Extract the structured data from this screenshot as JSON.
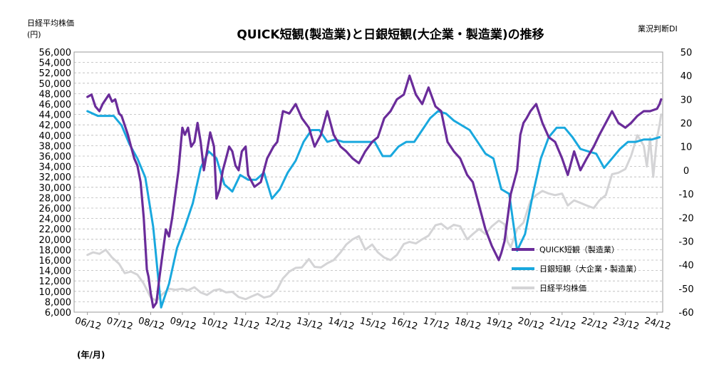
{
  "chart_data": {
    "type": "line",
    "title": "QUICK短観(製造業)と日銀短観(大企業・製造業)の推移",
    "left_axis_label": [
      "日経平均株価",
      "(円)"
    ],
    "right_axis_label": "業況判断DI",
    "x_unit_label": "(年/月)",
    "x_labels": [
      "06/12",
      "07/12",
      "08/12",
      "09/12",
      "10/12",
      "11/12",
      "12/12",
      "13/12",
      "14/12",
      "15/12",
      "16/12",
      "17/12",
      "18/12",
      "19/12",
      "20/12",
      "21/12",
      "22/12",
      "23/12",
      "24/12"
    ],
    "left_ylim": [
      6000,
      56000
    ],
    "left_ticks": [
      "6,000",
      "8,000",
      "10,000",
      "12,000",
      "14,000",
      "16,000",
      "18,000",
      "20,000",
      "22,000",
      "24,000",
      "26,000",
      "28,000",
      "30,000",
      "32,000",
      "34,000",
      "36,000",
      "38,000",
      "40,000",
      "42,000",
      "44,000",
      "46,000",
      "48,000",
      "50,000",
      "52,000",
      "54,000",
      "56,000"
    ],
    "right_ylim": [
      -60,
      50
    ],
    "right_ticks": [
      "-60",
      "-50",
      "-40",
      "-30",
      "-20",
      "-10",
      "0",
      "10",
      "20",
      "30",
      "40",
      "50"
    ],
    "grid": "horizontal dashed",
    "legend_position": "inside lower-right",
    "series": [
      {
        "name": "QUICK短観（製造業）",
        "axis": "right",
        "color": "#6a2c9a",
        "x": [
          2006.92,
          2007.05,
          2007.17,
          2007.3,
          2007.4,
          2007.5,
          2007.6,
          2007.7,
          2007.8,
          2007.92,
          2008.0,
          2008.1,
          2008.2,
          2008.3,
          2008.4,
          2008.5,
          2008.6,
          2008.7,
          2008.8,
          2008.85,
          2008.92,
          2009.0,
          2009.1,
          2009.2,
          2009.3,
          2009.4,
          2009.5,
          2009.6,
          2009.7,
          2009.8,
          2009.92,
          2010.0,
          2010.1,
          2010.2,
          2010.3,
          2010.4,
          2010.5,
          2010.6,
          2010.7,
          2010.8,
          2010.92,
          2011.0,
          2011.1,
          2011.2,
          2011.3,
          2011.4,
          2011.5,
          2011.6,
          2011.7,
          2011.8,
          2011.92,
          2012.0,
          2012.2,
          2012.4,
          2012.6,
          2012.8,
          2012.92,
          2013.1,
          2013.3,
          2013.5,
          2013.7,
          2013.92,
          2014.1,
          2014.3,
          2014.5,
          2014.7,
          2014.92,
          2015.1,
          2015.3,
          2015.5,
          2015.7,
          2015.92,
          2016.1,
          2016.3,
          2016.5,
          2016.7,
          2016.92,
          2017.1,
          2017.3,
          2017.5,
          2017.7,
          2017.92,
          2018.1,
          2018.3,
          2018.5,
          2018.7,
          2018.92,
          2019.1,
          2019.3,
          2019.5,
          2019.7,
          2019.92,
          2020.0,
          2020.1,
          2020.2,
          2020.3,
          2020.4,
          2020.5,
          2020.6,
          2020.7,
          2020.8,
          2020.92,
          2021.1,
          2021.3,
          2021.5,
          2021.7,
          2021.92,
          2022.1,
          2022.3,
          2022.5,
          2022.7,
          2022.92,
          2023.1,
          2023.3,
          2023.5,
          2023.7,
          2023.92,
          2024.1,
          2024.3,
          2024.5,
          2024.7,
          2024.92,
          2025.0,
          2025.05
        ],
        "y": [
          31,
          32,
          27,
          25,
          28,
          30,
          32,
          29,
          30,
          24,
          23,
          19,
          15,
          10,
          5,
          2,
          -5,
          -20,
          -42,
          -45,
          -52,
          -58,
          -56,
          -45,
          -35,
          -25,
          -28,
          -20,
          -10,
          0,
          18,
          15,
          18,
          10,
          12,
          20,
          12,
          0,
          8,
          16,
          10,
          -12,
          -8,
          0,
          5,
          10,
          8,
          2,
          0,
          8,
          10,
          -2,
          -7,
          -5,
          5,
          10,
          12,
          25,
          24,
          28,
          22,
          18,
          10,
          15,
          25,
          15,
          10,
          8,
          5,
          3,
          8,
          12,
          14,
          22,
          25,
          30,
          32,
          40,
          32,
          28,
          35,
          27,
          25,
          12,
          8,
          5,
          -2,
          -5,
          -15,
          -25,
          -32,
          -38,
          -35,
          -30,
          -20,
          -10,
          -5,
          0,
          15,
          20,
          22,
          25,
          28,
          20,
          14,
          12,
          5,
          -2,
          8,
          0,
          5,
          10,
          15,
          20,
          25,
          20,
          18,
          20,
          23,
          25,
          25,
          26,
          28,
          30
        ],
        "width": 3.2
      },
      {
        "name": "日銀短観（大企業・製造業）",
        "axis": "right",
        "color": "#19a8de",
        "x": [
          2006.92,
          2007.25,
          2007.5,
          2007.75,
          2008.0,
          2008.25,
          2008.5,
          2008.75,
          2009.0,
          2009.25,
          2009.5,
          2009.75,
          2010.0,
          2010.25,
          2010.5,
          2010.75,
          2011.0,
          2011.25,
          2011.5,
          2011.75,
          2012.0,
          2012.25,
          2012.5,
          2012.75,
          2013.0,
          2013.25,
          2013.5,
          2013.75,
          2014.0,
          2014.25,
          2014.5,
          2014.75,
          2015.0,
          2015.25,
          2015.5,
          2015.75,
          2016.0,
          2016.25,
          2016.5,
          2016.75,
          2017.0,
          2017.25,
          2017.5,
          2017.75,
          2018.0,
          2018.25,
          2018.5,
          2018.75,
          2019.0,
          2019.25,
          2019.5,
          2019.75,
          2020.0,
          2020.25,
          2020.5,
          2020.75,
          2021.0,
          2021.25,
          2021.5,
          2021.75,
          2022.0,
          2022.25,
          2022.5,
          2022.75,
          2023.0,
          2023.25,
          2023.5,
          2023.75,
          2024.0,
          2024.25,
          2024.5,
          2024.75,
          2025.0
        ],
        "y": [
          25,
          23,
          23,
          23,
          19,
          11,
          5,
          -3,
          -24,
          -58,
          -48,
          -33,
          -24,
          -14,
          1,
          8,
          5,
          -6,
          -9,
          -2,
          -4,
          -4,
          -1,
          -12,
          -8,
          -1,
          4,
          12,
          17,
          17,
          12,
          13,
          12,
          12,
          12,
          12,
          12,
          6,
          6,
          10,
          12,
          12,
          17,
          22,
          25,
          24,
          21,
          19,
          17,
          12,
          7,
          5,
          -8,
          -10,
          -34,
          -27,
          -10,
          5,
          14,
          18,
          18,
          14,
          9,
          8,
          7,
          1,
          5,
          9,
          12,
          12,
          13,
          13,
          14
        ]
      },
      {
        "name": "日経平均株価",
        "axis": "left",
        "color": "#d4d4d6",
        "x": [
          2006.92,
          2007.1,
          2007.3,
          2007.5,
          2007.7,
          2007.92,
          2008.1,
          2008.3,
          2008.5,
          2008.7,
          2008.92,
          2009.1,
          2009.3,
          2009.5,
          2009.7,
          2009.92,
          2010.1,
          2010.3,
          2010.5,
          2010.7,
          2010.92,
          2011.1,
          2011.3,
          2011.5,
          2011.7,
          2011.92,
          2012.1,
          2012.3,
          2012.5,
          2012.7,
          2012.92,
          2013.1,
          2013.3,
          2013.5,
          2013.7,
          2013.92,
          2014.1,
          2014.3,
          2014.5,
          2014.7,
          2014.92,
          2015.1,
          2015.3,
          2015.5,
          2015.7,
          2015.92,
          2016.1,
          2016.3,
          2016.5,
          2016.7,
          2016.92,
          2017.1,
          2017.3,
          2017.5,
          2017.7,
          2017.92,
          2018.1,
          2018.3,
          2018.5,
          2018.7,
          2018.92,
          2019.1,
          2019.3,
          2019.5,
          2019.7,
          2019.92,
          2020.1,
          2020.2,
          2020.3,
          2020.5,
          2020.7,
          2020.92,
          2021.1,
          2021.3,
          2021.5,
          2021.7,
          2021.92,
          2022.1,
          2022.3,
          2022.5,
          2022.7,
          2022.92,
          2023.1,
          2023.3,
          2023.5,
          2023.7,
          2023.92,
          2024.1,
          2024.3,
          2024.5,
          2024.6,
          2024.7,
          2024.8,
          2024.92,
          2025.0,
          2025.05
        ],
        "y": [
          17000,
          17500,
          17200,
          18000,
          16500,
          15300,
          13500,
          13800,
          13200,
          11500,
          8800,
          8200,
          9500,
          10500,
          10300,
          10500,
          10200,
          10800,
          9800,
          9300,
          10200,
          10400,
          9800,
          9900,
          8900,
          8500,
          9000,
          9500,
          8800,
          9100,
          10400,
          12500,
          13800,
          14500,
          14600,
          16200,
          14700,
          14600,
          15400,
          16000,
          17500,
          19000,
          20000,
          20600,
          18000,
          19000,
          17500,
          16500,
          16000,
          17000,
          19100,
          19500,
          19200,
          20000,
          20700,
          22700,
          23000,
          22000,
          22800,
          22500,
          20000,
          21000,
          22000,
          21000,
          22500,
          23600,
          22900,
          19500,
          18500,
          22000,
          23200,
          27400,
          28500,
          29300,
          28800,
          28500,
          28800,
          26500,
          27500,
          27000,
          26500,
          26000,
          27500,
          28500,
          32500,
          32800,
          33500,
          36000,
          40000,
          38000,
          34000,
          39500,
          32000,
          39500,
          42000,
          44000
        ]
      }
    ]
  }
}
